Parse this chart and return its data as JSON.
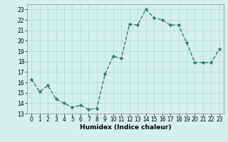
{
  "x": [
    0,
    1,
    2,
    3,
    4,
    5,
    6,
    7,
    8,
    9,
    10,
    11,
    12,
    13,
    14,
    15,
    16,
    17,
    18,
    19,
    20,
    21,
    22,
    23
  ],
  "y": [
    16.3,
    15.1,
    15.7,
    14.4,
    14.0,
    13.6,
    13.8,
    13.4,
    13.5,
    16.8,
    18.5,
    18.3,
    21.6,
    21.5,
    23.0,
    22.2,
    22.0,
    21.5,
    21.5,
    19.8,
    17.9,
    17.9,
    17.9,
    19.2
  ],
  "line_color": "#2e7d6e",
  "marker": "D",
  "marker_size": 1.8,
  "linewidth": 1.0,
  "linestyle": "--",
  "background_color": "#d4f0ec",
  "grid_color": "#b0d8d4",
  "xlabel": "Humidex (Indice chaleur)",
  "xlabel_fontsize": 6.5,
  "tick_fontsize": 5.5,
  "ylim": [
    13,
    23.5
  ],
  "xlim": [
    -0.5,
    23.5
  ],
  "yticks": [
    13,
    14,
    15,
    16,
    17,
    18,
    19,
    20,
    21,
    22,
    23
  ],
  "xticks": [
    0,
    1,
    2,
    3,
    4,
    5,
    6,
    7,
    8,
    9,
    10,
    11,
    12,
    13,
    14,
    15,
    16,
    17,
    18,
    19,
    20,
    21,
    22,
    23
  ]
}
